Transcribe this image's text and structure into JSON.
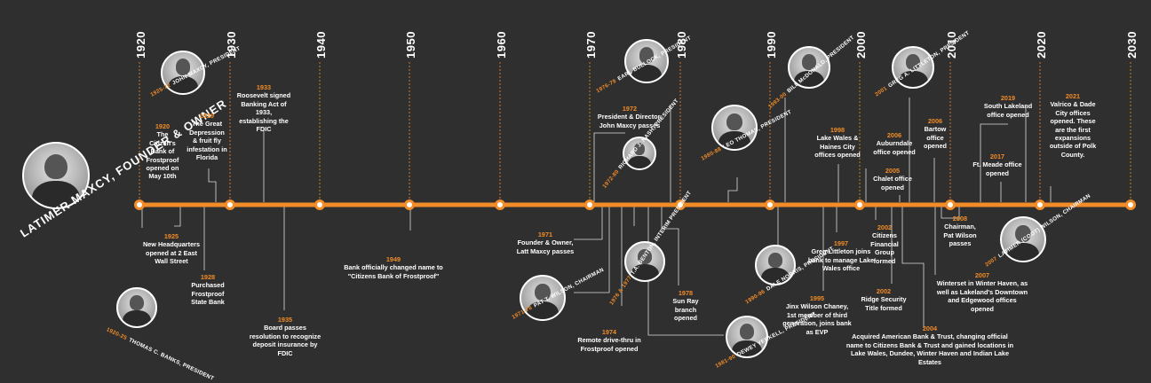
{
  "decades": [
    "1920",
    "1930",
    "1940",
    "1950",
    "1960",
    "1970",
    "1980",
    "1990",
    "2000",
    "2010",
    "2020",
    "2030"
  ],
  "founder_label": "LATIMER MAXCY, FOUNDER & OWNER",
  "portraits": [
    {
      "years": "1920-25",
      "name": "THOMAS C. BANKS, PRESIDENT"
    },
    {
      "years": "1925-72",
      "name": "JOHN MAXCY, PRESIDENT"
    },
    {
      "years": "1971-78",
      "name": "PAT T. WILSON, CHAIRMAN"
    },
    {
      "years": "1972-80",
      "name": "RICHARD J. NASH, PRESIDENT"
    },
    {
      "years": "1976-79",
      "name": "EARL BULLOCK, PRESIDENT"
    },
    {
      "years": "1976 & 1977",
      "name": "T.A. BENTON, INTERIM PRESIDENT"
    },
    {
      "years": "1980-88",
      "name": "LEO THOMAS, PRESIDENT"
    },
    {
      "years": "1981-90",
      "name": "DEWEY YERKELL, PRESIDENT"
    },
    {
      "years": "1990-96",
      "name": "DALE NORRIS, PRESIDENT"
    },
    {
      "years": "1993-00",
      "name": "BILL McDONALD, PRESIDENT"
    },
    {
      "years": "2001",
      "name": "GREG A. LITTLETON, PRESIDENT"
    },
    {
      "years": "2007",
      "name": "LATIMER (COOT) WILSON, CHAIRMAN"
    }
  ],
  "events": {
    "e1920": {
      "year": "1920",
      "text": "The Citizen's Bank of Frostproof opened on May 10th"
    },
    "e1925": {
      "year": "1925",
      "text": "New Headquarters opened at 2 East Wall Street"
    },
    "e1928": {
      "year": "1928",
      "text": "Purchased Frostproof State Bank"
    },
    "e1929": {
      "year": "1929",
      "text": "The Great Depression & fruit fly infestation in Florida"
    },
    "e1933": {
      "year": "1933",
      "text": "Roosevelt signed Banking Act of 1933, establishing the FDIC"
    },
    "e1935": {
      "year": "1935",
      "text": "Board passes resolution to recognize deposit insurance by FDIC"
    },
    "e1949": {
      "year": "1949",
      "text": "Bank officially changed name to \"Citizens Bank of Frostproof\""
    },
    "e1971": {
      "year": "1971",
      "text": "Founder & Owner, Latt Maxcy passes"
    },
    "e1972": {
      "year": "1972",
      "text": "President & Director, John Maxcy passes"
    },
    "e1974": {
      "year": "1974",
      "text": "Remote drive-thru in Frostproof opened"
    },
    "e1978": {
      "year": "1978",
      "text": "Sun Ray branch opened"
    },
    "e1995": {
      "year": "1995",
      "text": "Jinx Wilson Chaney, 1st member of third generation, joins bank as EVP"
    },
    "e1997": {
      "year": "1997",
      "text": "Greg Littleton joins bank to manage Lake Wales office"
    },
    "e1998": {
      "year": "1998",
      "text": "Lake Wales & Haines City offices opened"
    },
    "e2002a": {
      "year": "2002",
      "text": "Citizens Financial Group formed"
    },
    "e2002b": {
      "year": "2002",
      "text": "Ridge Security Title formed"
    },
    "e2004": {
      "year": "2004",
      "text": "Acquired American Bank & Trust, changing official name to Citizens Bank & Trust and gained locations in Lake Wales, Dundee, Winter Haven and Indian Lake Estates"
    },
    "e2005": {
      "year": "2005",
      "text": "Chalet office opened"
    },
    "e2006a": {
      "year": "2006",
      "text": "Auburndale office opened"
    },
    "e2006b": {
      "year": "2006",
      "text": "Bartow office opened"
    },
    "e2007": {
      "year": "2007",
      "text": "Winterset in Winter Haven, as well as Lakeland's Downtown and Edgewood offices opened"
    },
    "e2008": {
      "year": "2008",
      "text": "Chairman, Pat Wilson passes"
    },
    "e2017": {
      "year": "2017",
      "text": "Ft. Meade office opened"
    },
    "e2019": {
      "year": "2019",
      "text": "South Lakeland office opened"
    },
    "e2021": {
      "year": "2021",
      "text": "Valrico & Dade City offices opened. These are the first expansions outside of Polk County."
    }
  },
  "colors": {
    "background": "#2f2f2f",
    "accent": "#f28c28",
    "text": "#ffffff"
  }
}
